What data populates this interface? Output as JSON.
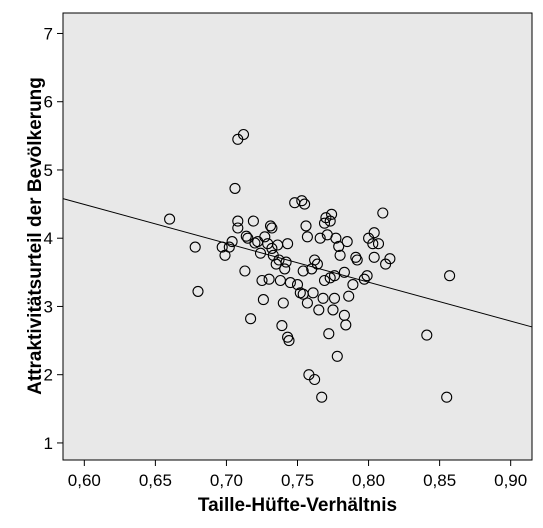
{
  "chart_data": {
    "type": "scatter",
    "title": "",
    "xlabel": "Taille-Hüfte-Verhältnis",
    "ylabel": "Attraktivitätsurteil der Bevölkerung",
    "xlim": [
      0.585,
      0.915
    ],
    "ylim": [
      0.75,
      7.3
    ],
    "xticks": [
      0.6,
      0.65,
      0.7,
      0.75,
      0.8,
      0.85,
      0.9
    ],
    "xtick_labels": [
      "0,60",
      "0,65",
      "0,70",
      "0,75",
      "0,80",
      "0,85",
      "0,90"
    ],
    "yticks": [
      1,
      2,
      3,
      4,
      5,
      6,
      7
    ],
    "ytick_labels": [
      "1",
      "2",
      "3",
      "4",
      "5",
      "6",
      "7"
    ],
    "grid": false,
    "plot_background": "#e8e8e8",
    "point_color": "#000000",
    "regression_line": {
      "x": [
        0.585,
        0.915
      ],
      "y": [
        4.58,
        2.7
      ]
    },
    "points": [
      {
        "x": 0.66,
        "y": 4.28
      },
      {
        "x": 0.678,
        "y": 3.87
      },
      {
        "x": 0.68,
        "y": 3.22
      },
      {
        "x": 0.697,
        "y": 3.87
      },
      {
        "x": 0.699,
        "y": 3.75
      },
      {
        "x": 0.702,
        "y": 3.87
      },
      {
        "x": 0.704,
        "y": 3.95
      },
      {
        "x": 0.706,
        "y": 4.73
      },
      {
        "x": 0.708,
        "y": 4.25
      },
      {
        "x": 0.708,
        "y": 4.15
      },
      {
        "x": 0.708,
        "y": 5.45
      },
      {
        "x": 0.712,
        "y": 5.52
      },
      {
        "x": 0.713,
        "y": 3.52
      },
      {
        "x": 0.714,
        "y": 4.03
      },
      {
        "x": 0.715,
        "y": 4.0
      },
      {
        "x": 0.717,
        "y": 2.82
      },
      {
        "x": 0.719,
        "y": 4.25
      },
      {
        "x": 0.72,
        "y": 3.93
      },
      {
        "x": 0.722,
        "y": 3.95
      },
      {
        "x": 0.724,
        "y": 3.78
      },
      {
        "x": 0.725,
        "y": 3.38
      },
      {
        "x": 0.726,
        "y": 3.1
      },
      {
        "x": 0.727,
        "y": 4.02
      },
      {
        "x": 0.729,
        "y": 3.92
      },
      {
        "x": 0.73,
        "y": 3.4
      },
      {
        "x": 0.731,
        "y": 4.18
      },
      {
        "x": 0.732,
        "y": 4.15
      },
      {
        "x": 0.732,
        "y": 3.85
      },
      {
        "x": 0.733,
        "y": 3.75
      },
      {
        "x": 0.735,
        "y": 3.62
      },
      {
        "x": 0.736,
        "y": 3.9
      },
      {
        "x": 0.737,
        "y": 3.68
      },
      {
        "x": 0.738,
        "y": 3.38
      },
      {
        "x": 0.739,
        "y": 2.72
      },
      {
        "x": 0.74,
        "y": 3.05
      },
      {
        "x": 0.741,
        "y": 3.55
      },
      {
        "x": 0.742,
        "y": 3.65
      },
      {
        "x": 0.743,
        "y": 3.92
      },
      {
        "x": 0.743,
        "y": 2.55
      },
      {
        "x": 0.744,
        "y": 2.5
      },
      {
        "x": 0.745,
        "y": 3.35
      },
      {
        "x": 0.748,
        "y": 4.52
      },
      {
        "x": 0.75,
        "y": 3.32
      },
      {
        "x": 0.752,
        "y": 3.2
      },
      {
        "x": 0.753,
        "y": 4.55
      },
      {
        "x": 0.754,
        "y": 3.52
      },
      {
        "x": 0.754,
        "y": 3.18
      },
      {
        "x": 0.755,
        "y": 4.5
      },
      {
        "x": 0.756,
        "y": 4.18
      },
      {
        "x": 0.757,
        "y": 3.05
      },
      {
        "x": 0.757,
        "y": 4.02
      },
      {
        "x": 0.758,
        "y": 2.0
      },
      {
        "x": 0.76,
        "y": 3.55
      },
      {
        "x": 0.761,
        "y": 3.2
      },
      {
        "x": 0.762,
        "y": 1.93
      },
      {
        "x": 0.762,
        "y": 3.68
      },
      {
        "x": 0.764,
        "y": 3.62
      },
      {
        "x": 0.765,
        "y": 2.95
      },
      {
        "x": 0.766,
        "y": 4.0
      },
      {
        "x": 0.767,
        "y": 1.67
      },
      {
        "x": 0.768,
        "y": 3.12
      },
      {
        "x": 0.769,
        "y": 3.38
      },
      {
        "x": 0.769,
        "y": 4.22
      },
      {
        "x": 0.77,
        "y": 4.3
      },
      {
        "x": 0.771,
        "y": 4.05
      },
      {
        "x": 0.772,
        "y": 2.6
      },
      {
        "x": 0.773,
        "y": 4.25
      },
      {
        "x": 0.773,
        "y": 3.42
      },
      {
        "x": 0.774,
        "y": 4.35
      },
      {
        "x": 0.775,
        "y": 2.95
      },
      {
        "x": 0.776,
        "y": 3.12
      },
      {
        "x": 0.776,
        "y": 3.45
      },
      {
        "x": 0.777,
        "y": 4.0
      },
      {
        "x": 0.778,
        "y": 2.27
      },
      {
        "x": 0.779,
        "y": 3.88
      },
      {
        "x": 0.78,
        "y": 3.75
      },
      {
        "x": 0.783,
        "y": 3.5
      },
      {
        "x": 0.783,
        "y": 2.87
      },
      {
        "x": 0.784,
        "y": 2.73
      },
      {
        "x": 0.785,
        "y": 3.95
      },
      {
        "x": 0.786,
        "y": 3.15
      },
      {
        "x": 0.789,
        "y": 3.32
      },
      {
        "x": 0.791,
        "y": 3.72
      },
      {
        "x": 0.792,
        "y": 3.68
      },
      {
        "x": 0.797,
        "y": 3.4
      },
      {
        "x": 0.799,
        "y": 3.45
      },
      {
        "x": 0.8,
        "y": 4.0
      },
      {
        "x": 0.803,
        "y": 3.92
      },
      {
        "x": 0.804,
        "y": 3.72
      },
      {
        "x": 0.804,
        "y": 4.08
      },
      {
        "x": 0.807,
        "y": 3.92
      },
      {
        "x": 0.81,
        "y": 4.37
      },
      {
        "x": 0.812,
        "y": 3.62
      },
      {
        "x": 0.815,
        "y": 3.7
      },
      {
        "x": 0.841,
        "y": 2.58
      },
      {
        "x": 0.855,
        "y": 1.67
      },
      {
        "x": 0.857,
        "y": 3.45
      }
    ]
  }
}
